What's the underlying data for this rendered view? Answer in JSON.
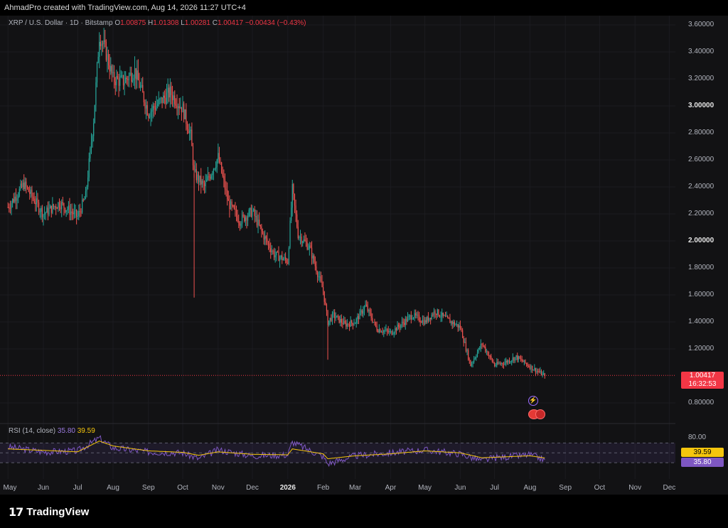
{
  "header": {
    "attribution": "AhmadPro created with TradingView.com, Aug 14, 2026 11:27 UTC+4"
  },
  "legend": {
    "symbol": "XRP / U.S. Dollar · 1D · Bitstamp",
    "open_label": "O",
    "open": "1.00875",
    "high_label": "H",
    "high": "1.01308",
    "low_label": "L",
    "low": "1.00281",
    "close_label": "C",
    "close": "1.00417",
    "change": "−0.00434 (−0.43%)"
  },
  "last_price": {
    "value": "1.00417",
    "countdown": "16:32:53",
    "color": "#f23645"
  },
  "rsi": {
    "label": "RSI (14, close)",
    "value": "35.80",
    "ma_value": "39.59",
    "rsi_color": "#7e57c2",
    "ma_color": "#f5c60d"
  },
  "brand": {
    "name": "TradingView"
  },
  "colors": {
    "up": "#26a69a",
    "down": "#ef5350",
    "background": "#121214"
  },
  "chart_data": [
    {
      "type": "candlestick",
      "title": "XRP / U.S. Dollar · 1D · Bitstamp",
      "y_axis_ticks": [
        "3.60000",
        "3.40000",
        "3.20000",
        "3.00000",
        "2.80000",
        "2.60000",
        "2.40000",
        "2.20000",
        "2.00000",
        "1.80000",
        "1.60000",
        "1.40000",
        "1.20000",
        "0.80000"
      ],
      "y_axis_bold_ticks": [
        "3.00000",
        "2.00000"
      ],
      "ylim": [
        0.7,
        3.68
      ],
      "x_axis_ticks": [
        "May",
        "Jun",
        "Jul",
        "Aug",
        "Sep",
        "Oct",
        "Nov",
        "Dec",
        "2026",
        "Feb",
        "Mar",
        "Apr",
        "May",
        "Jun",
        "Jul",
        "Aug",
        "Sep",
        "Oct",
        "Nov",
        "Dec"
      ],
      "x_axis_bold_ticks": [
        "2026"
      ],
      "close_path": {
        "x": [
          "May 1",
          "May 15",
          "Jun 1",
          "Jun 15",
          "Jul 1",
          "Jul 8",
          "Jul 15",
          "Jul 20",
          "Jul 25",
          "Aug 1",
          "Aug 10",
          "Aug 20",
          "Sep 1",
          "Sep 10",
          "Sep 20",
          "Oct 1",
          "Oct 8",
          "Oct 11",
          "Oct 20",
          "Nov 1",
          "Nov 10",
          "Nov 20",
          "Dec 1",
          "Dec 10",
          "Dec 20",
          "Jan 1",
          "Jan 5",
          "Jan 10",
          "Jan 20",
          "Feb 1",
          "Feb 5",
          "Feb 10",
          "Feb 20",
          "Mar 1",
          "Mar 10",
          "Mar 20",
          "Apr 1",
          "Apr 10",
          "Apr 20",
          "May 1",
          "May 10",
          "May 20",
          "Jun 1",
          "Jun 10",
          "Jun 20",
          "Jul 1",
          "Jul 10",
          "Jul 20",
          "Aug 1",
          "Aug 14"
        ],
        "y": [
          2.25,
          2.42,
          2.2,
          2.28,
          2.18,
          2.33,
          2.9,
          3.52,
          3.42,
          3.2,
          3.18,
          3.26,
          2.95,
          3.02,
          3.1,
          2.98,
          2.78,
          2.5,
          2.4,
          2.62,
          2.28,
          2.15,
          2.22,
          2.05,
          1.9,
          1.85,
          2.38,
          2.05,
          1.95,
          1.63,
          1.4,
          1.45,
          1.38,
          1.4,
          1.52,
          1.35,
          1.32,
          1.38,
          1.45,
          1.4,
          1.48,
          1.42,
          1.36,
          1.08,
          1.24,
          1.08,
          1.1,
          1.14,
          1.07,
          1.0
        ]
      }
    },
    {
      "type": "line",
      "title": "RSI (14, close)",
      "y_axis_ticks": [
        "80.00"
      ],
      "band_upper": 70,
      "band_lower": 30,
      "ylim": [
        20,
        85
      ],
      "series": [
        {
          "name": "RSI",
          "last": 35.8
        },
        {
          "name": "MA",
          "last": 39.59
        }
      ],
      "x": [
        "May 1",
        "Jun 1",
        "Jul 1",
        "Jul 20",
        "Aug 1",
        "Sep 1",
        "Oct 1",
        "Oct 15",
        "Nov 1",
        "Dec 1",
        "Jan 1",
        "Jan 5",
        "Feb 1",
        "Feb 5",
        "Mar 1",
        "Apr 1",
        "May 1",
        "Jun 1",
        "Jun 20",
        "Jul 1",
        "Aug 1",
        "Aug 14"
      ],
      "rsi_values": [
        62,
        52,
        54,
        80,
        60,
        52,
        50,
        38,
        56,
        44,
        46,
        72,
        42,
        28,
        44,
        50,
        56,
        48,
        34,
        40,
        46,
        35.8
      ],
      "ma_values": [
        58,
        55,
        52,
        74,
        64,
        54,
        51,
        45,
        52,
        47,
        46,
        58,
        48,
        38,
        44,
        48,
        54,
        50,
        40,
        41,
        44,
        39.59
      ]
    }
  ]
}
